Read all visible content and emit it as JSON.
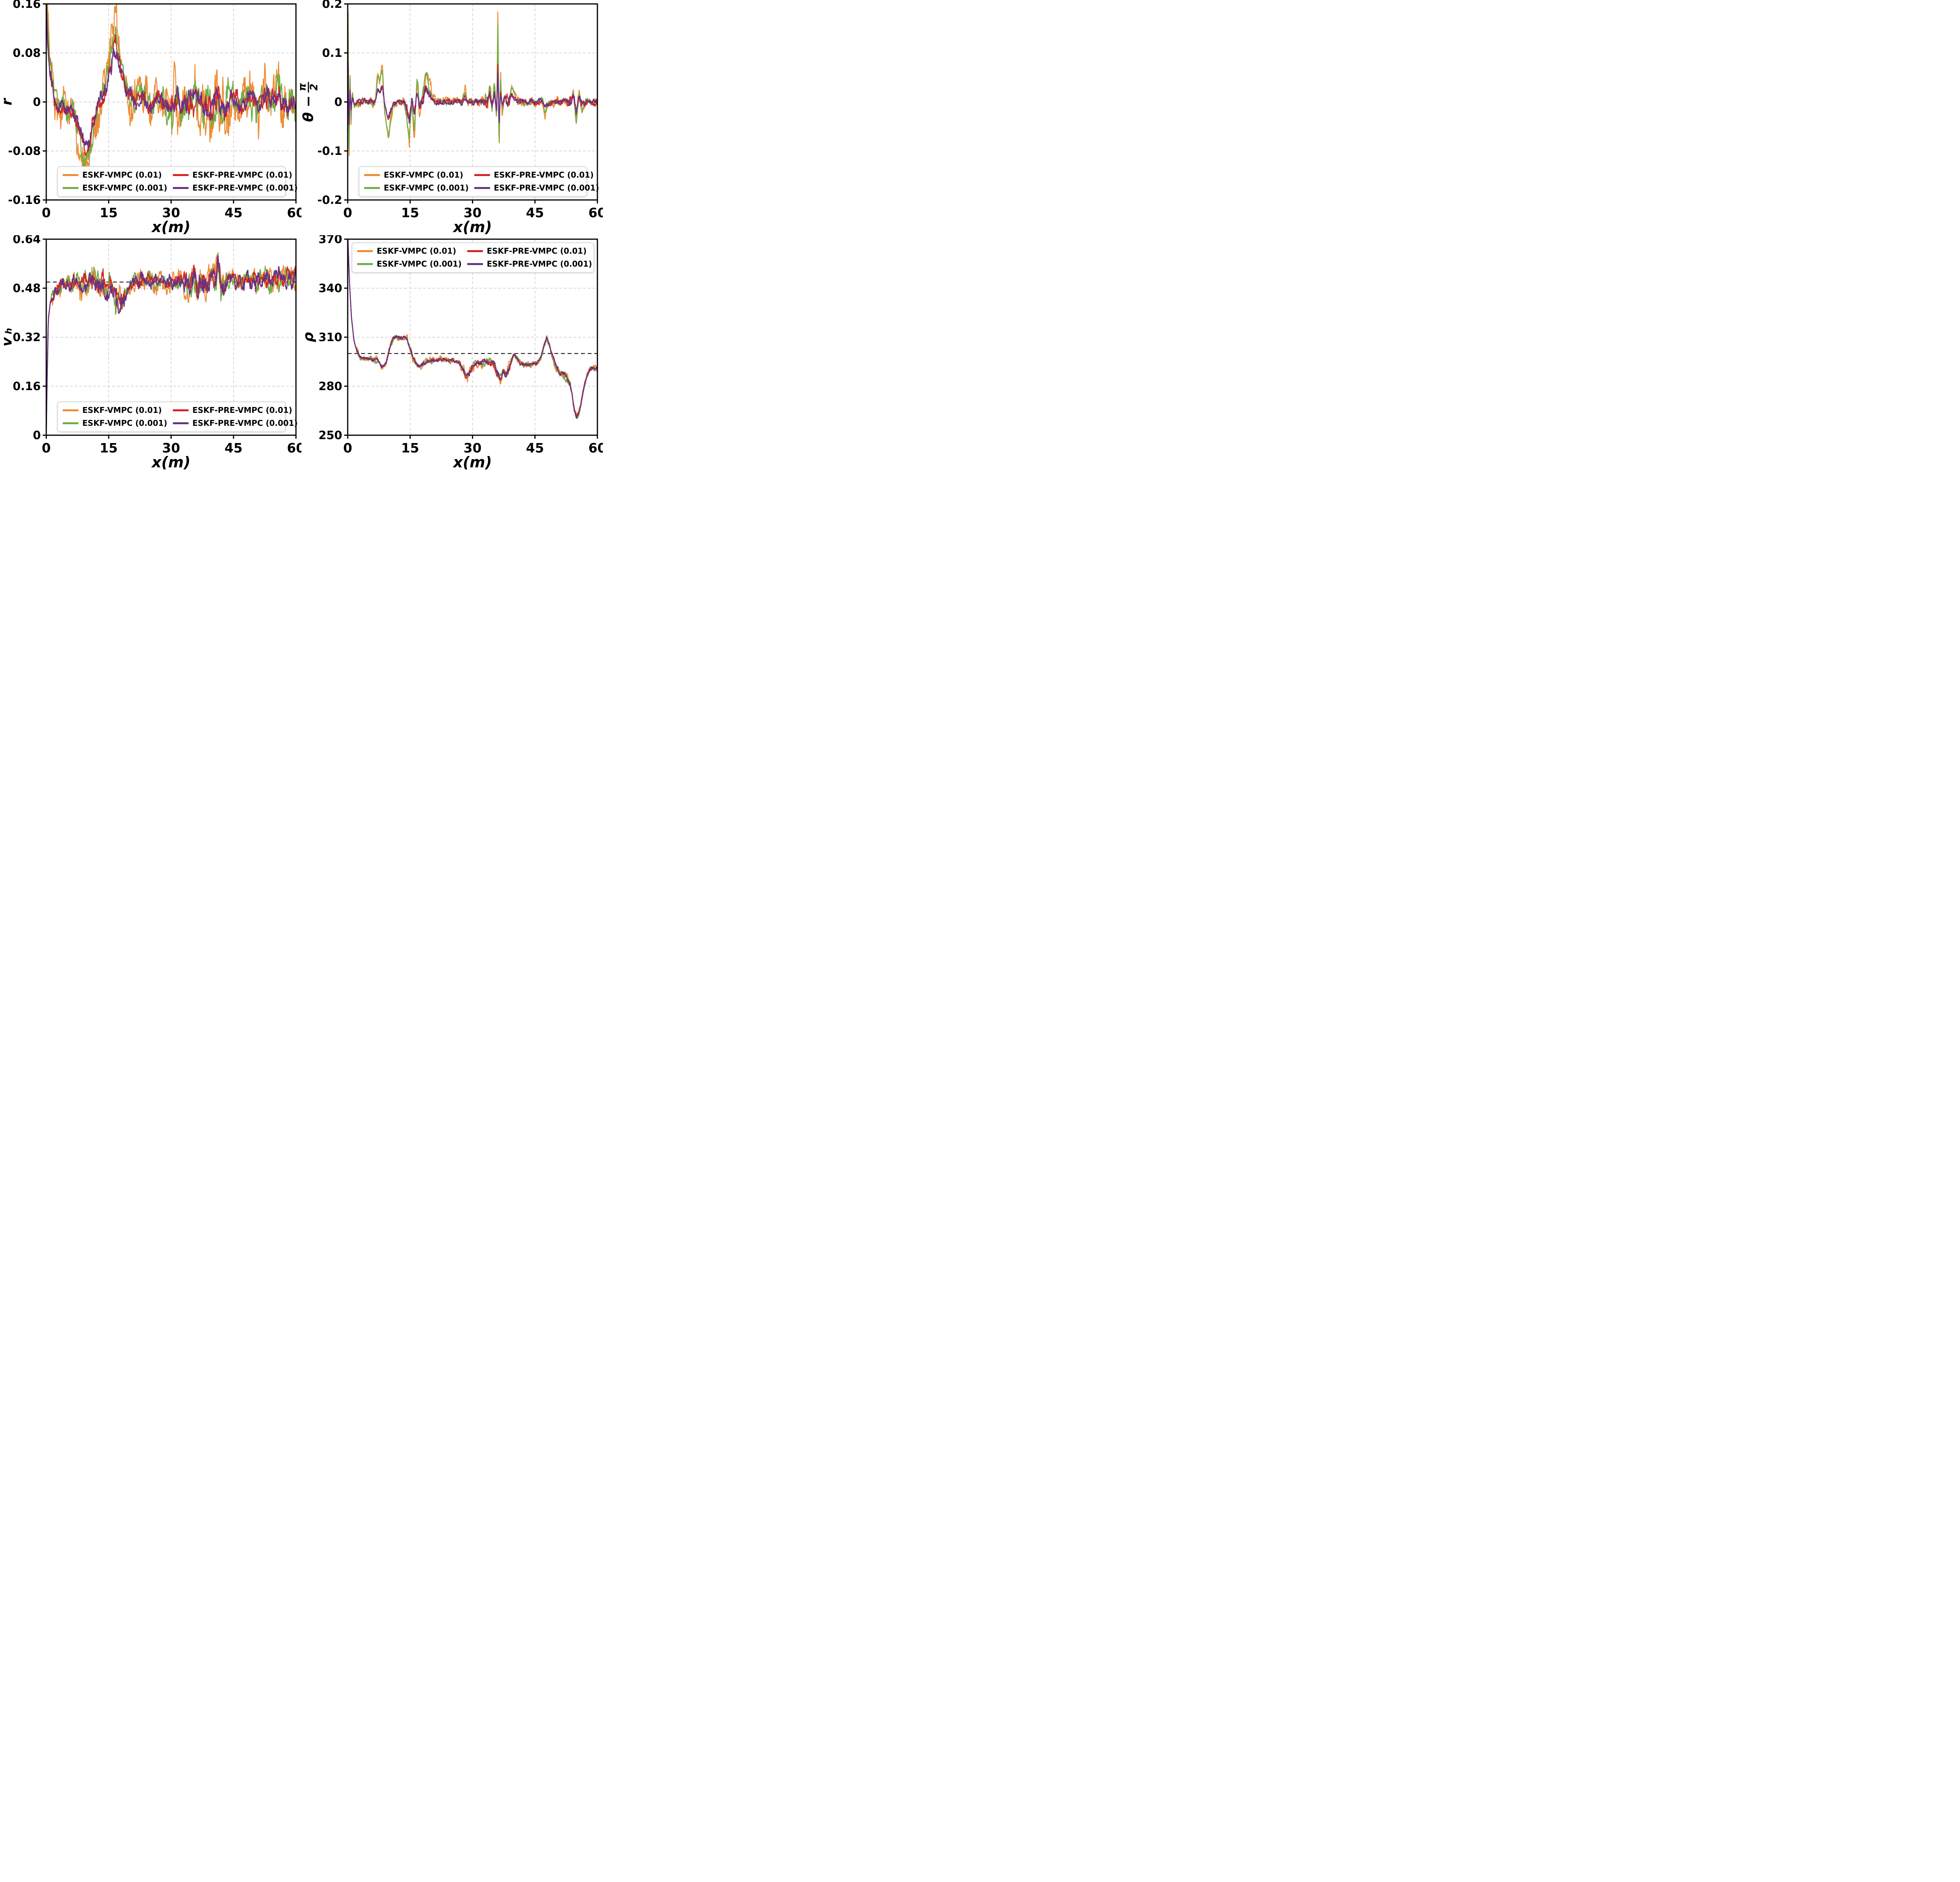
{
  "figure": {
    "background": "#ffffff"
  },
  "legend": {
    "columns": 2,
    "border_color": "#dcdcdc",
    "background": "#ffffff",
    "entries": [
      {
        "label": "ESKF-VMPC (0.01)",
        "color": "#EE8B33"
      },
      {
        "label": "ESKF-VMPC (0.001)",
        "color": "#6FAE44"
      },
      {
        "label": "ESKF-PRE-VMPC (0.01)",
        "color": "#D62222"
      },
      {
        "label": "ESKF-PRE-VMPC (0.001)",
        "color": "#6A3185"
      }
    ]
  },
  "chart_data": [
    {
      "id": "r",
      "type": "line",
      "title": "",
      "xlabel": "x(m)",
      "ylabel": {
        "kind": "plain",
        "text": "r"
      },
      "xlim": [
        0,
        60
      ],
      "ylim": [
        -0.16,
        0.16
      ],
      "xticks": [
        0,
        15,
        30,
        45,
        60
      ],
      "xtick_labels": [
        "0",
        "15",
        "30",
        "45",
        "60"
      ],
      "yticks": [
        -0.16,
        -0.08,
        0,
        0.08,
        0.16
      ],
      "ytick_labels": [
        "-0.16",
        "-0.08",
        "0",
        "0.08",
        "0.16"
      ],
      "grid": true,
      "ref_line": null,
      "legend_position": "bottom",
      "trend": [
        [
          0,
          0.22
        ],
        [
          0.3,
          0.13
        ],
        [
          0.8,
          0.06
        ],
        [
          1.5,
          0.02
        ],
        [
          2.5,
          0
        ],
        [
          4,
          -0.005
        ],
        [
          5.5,
          -0.012
        ],
        [
          7,
          -0.03
        ],
        [
          8,
          -0.055
        ],
        [
          9,
          -0.08
        ],
        [
          9.7,
          -0.1
        ],
        [
          10.3,
          -0.085
        ],
        [
          11,
          -0.05
        ],
        [
          12,
          -0.015
        ],
        [
          13,
          0.005
        ],
        [
          14,
          0.015
        ],
        [
          15,
          0.05
        ],
        [
          15.8,
          0.09
        ],
        [
          16.5,
          0.11
        ],
        [
          17.2,
          0.095
        ],
        [
          18,
          0.06
        ],
        [
          19,
          0.03
        ],
        [
          20,
          0.012
        ],
        [
          21.5,
          0
        ],
        [
          23,
          0.01
        ],
        [
          25,
          -0.006
        ],
        [
          27,
          0.006
        ],
        [
          29,
          -0.01
        ],
        [
          31,
          0.006
        ],
        [
          33,
          -0.012
        ],
        [
          34,
          0.006
        ],
        [
          35,
          -0.006
        ],
        [
          37,
          0.012
        ],
        [
          38.5,
          -0.012
        ],
        [
          40,
          -0.022
        ],
        [
          41,
          0.006
        ],
        [
          43,
          -0.006
        ],
        [
          45,
          0.012
        ],
        [
          47,
          -0.006
        ],
        [
          49,
          0.006
        ],
        [
          51,
          -0.012
        ],
        [
          52.5,
          0.012
        ],
        [
          54,
          0
        ],
        [
          56,
          0.012
        ],
        [
          57.5,
          -0.015
        ],
        [
          59,
          0.006
        ],
        [
          60,
          -0.012
        ]
      ],
      "noise_regions": [
        [
          0,
          1,
          0.5
        ],
        [
          30,
          44,
          1.5
        ],
        [
          48,
          60,
          1.2
        ]
      ],
      "series": [
        {
          "name": "ESKF-VMPC (0.01)",
          "color": "#EE8B33",
          "scale": 1.2,
          "noise_amp": 0.04,
          "width": 2.4,
          "seed": 3
        },
        {
          "name": "ESKF-VMPC (0.001)",
          "color": "#6FAE44",
          "scale": 1.05,
          "noise_amp": 0.024,
          "width": 2.4,
          "seed": 17
        },
        {
          "name": "ESKF-PRE-VMPC (0.01)",
          "color": "#D62222",
          "scale": 0.85,
          "noise_amp": 0.015,
          "width": 2.5,
          "seed": 29
        },
        {
          "name": "ESKF-PRE-VMPC (0.001)",
          "color": "#6A3185",
          "scale": 0.75,
          "noise_amp": 0.014,
          "width": 2.6,
          "seed": 41
        }
      ]
    },
    {
      "id": "theta-error",
      "type": "line",
      "title": "",
      "xlabel": "x(m)",
      "ylabel": {
        "kind": "frac",
        "prefix": "θ −",
        "num": "π",
        "den": "2"
      },
      "xlim": [
        0,
        60
      ],
      "ylim": [
        -0.2,
        0.2
      ],
      "xticks": [
        0,
        15,
        30,
        45,
        60
      ],
      "xtick_labels": [
        "0",
        "15",
        "30",
        "45",
        "60"
      ],
      "yticks": [
        -0.2,
        -0.1,
        0,
        0.1,
        0.2
      ],
      "ytick_labels": [
        "-0.2",
        "-0.1",
        "0",
        "0.1",
        "0.2"
      ],
      "grid": true,
      "ref_line": null,
      "legend_position": "bottom",
      "trend": [
        [
          0,
          0.02
        ],
        [
          0.12,
          0.17
        ],
        [
          0.3,
          -0.13
        ],
        [
          0.55,
          0.06
        ],
        [
          0.8,
          -0.04
        ],
        [
          1.1,
          0.02
        ],
        [
          1.6,
          -0.01
        ],
        [
          2.2,
          0
        ],
        [
          6.6,
          0
        ],
        [
          7.2,
          0.05
        ],
        [
          7.7,
          0.04
        ],
        [
          8.3,
          0.07
        ],
        [
          8.8,
          -0.01
        ],
        [
          9.3,
          -0.04
        ],
        [
          9.8,
          -0.065
        ],
        [
          10.4,
          -0.03
        ],
        [
          11,
          -0.005
        ],
        [
          13.6,
          0
        ],
        [
          14.2,
          -0.03
        ],
        [
          14.8,
          -0.075
        ],
        [
          15.4,
          0.01
        ],
        [
          16,
          -0.05
        ],
        [
          16.7,
          0.04
        ],
        [
          17.3,
          -0.02
        ],
        [
          18.2,
          0.02
        ],
        [
          18.9,
          0.055
        ],
        [
          19.5,
          0.035
        ],
        [
          20.3,
          0.005
        ],
        [
          21.5,
          0
        ],
        [
          27.6,
          0
        ],
        [
          28.2,
          0.02
        ],
        [
          28.9,
          0
        ],
        [
          33.6,
          0
        ],
        [
          34.1,
          0.04
        ],
        [
          34.7,
          -0.015
        ],
        [
          35.3,
          0.035
        ],
        [
          35.8,
          -0.04
        ],
        [
          36.1,
          0.17
        ],
        [
          36.35,
          -0.115
        ],
        [
          36.7,
          0.05
        ],
        [
          37.1,
          -0.02
        ],
        [
          37.8,
          0.015
        ],
        [
          38.6,
          0
        ],
        [
          39.4,
          0.03
        ],
        [
          40,
          0.015
        ],
        [
          40.8,
          0
        ],
        [
          46.8,
          0
        ],
        [
          47.4,
          -0.025
        ],
        [
          48.1,
          -0.01
        ],
        [
          48.8,
          0
        ],
        [
          53.6,
          0
        ],
        [
          54.2,
          0.025
        ],
        [
          54.9,
          -0.035
        ],
        [
          55.6,
          0.02
        ],
        [
          56.3,
          -0.01
        ],
        [
          57,
          0
        ],
        [
          60,
          0
        ]
      ],
      "noise_regions": [
        [
          0,
          2,
          0.5
        ],
        [
          14,
          20,
          1.8
        ],
        [
          33,
          39,
          1.8
        ],
        [
          53,
          57,
          1.5
        ]
      ],
      "series": [
        {
          "name": "ESKF-VMPC (0.01)",
          "color": "#EE8B33",
          "scale": 1.15,
          "noise_amp": 0.01,
          "width": 2.4,
          "seed": 7
        },
        {
          "name": "ESKF-VMPC (0.001)",
          "color": "#6FAE44",
          "scale": 1.0,
          "noise_amp": 0.008,
          "width": 2.4,
          "seed": 13
        },
        {
          "name": "ESKF-PRE-VMPC (0.01)",
          "color": "#D62222",
          "scale": 0.5,
          "noise_amp": 0.006,
          "width": 2.5,
          "seed": 23
        },
        {
          "name": "ESKF-PRE-VMPC (0.001)",
          "color": "#6A3185",
          "scale": 0.45,
          "noise_amp": 0.006,
          "width": 2.6,
          "seed": 31
        }
      ]
    },
    {
      "id": "vh",
      "type": "line",
      "title": "",
      "xlabel": "x(m)",
      "ylabel": {
        "kind": "sub",
        "main": "v",
        "sub": "h"
      },
      "xlim": [
        0,
        60
      ],
      "ylim": [
        0,
        0.64
      ],
      "xticks": [
        0,
        15,
        30,
        45,
        60
      ],
      "xtick_labels": [
        "0",
        "15",
        "30",
        "45",
        "60"
      ],
      "yticks": [
        0,
        0.16,
        0.32,
        0.48,
        0.64
      ],
      "ytick_labels": [
        "0",
        "0.16",
        "0.32",
        "0.48",
        "0.64"
      ],
      "grid": true,
      "ref_line": {
        "y": 0.5,
        "style": "dashed",
        "color": "#000000"
      },
      "legend_position": "bottom",
      "trend": [
        [
          0,
          0
        ],
        [
          0.2,
          0.18
        ],
        [
          0.5,
          0.38
        ],
        [
          1,
          0.435
        ],
        [
          2,
          0.465
        ],
        [
          3,
          0.48
        ],
        [
          4.5,
          0.495
        ],
        [
          6,
          0.5
        ],
        [
          7.5,
          0.505
        ],
        [
          8.5,
          0.49
        ],
        [
          9.5,
          0.515
        ],
        [
          10.5,
          0.49
        ],
        [
          11.5,
          0.51
        ],
        [
          12.5,
          0.49
        ],
        [
          13.5,
          0.515
        ],
        [
          14.5,
          0.47
        ],
        [
          15.5,
          0.5
        ],
        [
          16.5,
          0.45
        ],
        [
          17.5,
          0.44
        ],
        [
          18.5,
          0.44
        ],
        [
          19.5,
          0.46
        ],
        [
          20.5,
          0.49
        ],
        [
          21.5,
          0.505
        ],
        [
          23,
          0.5
        ],
        [
          24.5,
          0.515
        ],
        [
          26,
          0.5
        ],
        [
          27.5,
          0.51
        ],
        [
          29,
          0.5
        ],
        [
          30.5,
          0.505
        ],
        [
          32,
          0.5
        ],
        [
          33.5,
          0.51
        ],
        [
          34.5,
          0.48
        ],
        [
          35.5,
          0.52
        ],
        [
          36.5,
          0.46
        ],
        [
          37.5,
          0.52
        ],
        [
          38.5,
          0.48
        ],
        [
          39.5,
          0.53
        ],
        [
          40.5,
          0.5
        ],
        [
          41.2,
          0.56
        ],
        [
          42,
          0.47
        ],
        [
          43,
          0.5
        ],
        [
          44.5,
          0.505
        ],
        [
          46,
          0.51
        ],
        [
          47.5,
          0.5
        ],
        [
          49,
          0.515
        ],
        [
          50.5,
          0.5
        ],
        [
          52,
          0.52
        ],
        [
          53.5,
          0.5
        ],
        [
          55,
          0.515
        ],
        [
          56.5,
          0.505
        ],
        [
          58,
          0.52
        ],
        [
          59,
          0.51
        ],
        [
          60,
          0.53
        ]
      ],
      "noise_regions": [
        [
          0,
          1.2,
          0.2
        ],
        [
          8,
          19,
          1.5
        ],
        [
          33,
          43,
          1.6
        ],
        [
          49,
          60,
          1.3
        ]
      ],
      "series": [
        {
          "name": "ESKF-VMPC (0.01)",
          "color": "#EE8B33",
          "scale": 1,
          "noise_amp": 0.036,
          "width": 2.4,
          "seed": 5
        },
        {
          "name": "ESKF-VMPC (0.001)",
          "color": "#6FAE44",
          "scale": 1,
          "noise_amp": 0.028,
          "width": 2.4,
          "seed": 11
        },
        {
          "name": "ESKF-PRE-VMPC (0.01)",
          "color": "#D62222",
          "scale": 1,
          "noise_amp": 0.02,
          "width": 2.5,
          "seed": 19
        },
        {
          "name": "ESKF-PRE-VMPC (0.001)",
          "color": "#6A3185",
          "scale": 1,
          "noise_amp": 0.026,
          "width": 2.6,
          "seed": 27
        }
      ]
    },
    {
      "id": "rho",
      "type": "line",
      "title": "",
      "xlabel": "x(m)",
      "ylabel": {
        "kind": "plain",
        "text": "ρ"
      },
      "xlim": [
        0,
        60
      ],
      "ylim": [
        250,
        370
      ],
      "xticks": [
        0,
        15,
        30,
        45,
        60
      ],
      "xtick_labels": [
        "0",
        "15",
        "30",
        "45",
        "60"
      ],
      "yticks": [
        250,
        280,
        310,
        340,
        370
      ],
      "ytick_labels": [
        "250",
        "280",
        "310",
        "340",
        "370"
      ],
      "grid": true,
      "ref_line": {
        "y": 300,
        "style": "dashed",
        "color": "#000000"
      },
      "legend_position": "top",
      "trend": [
        [
          0,
          374
        ],
        [
          0.4,
          345
        ],
        [
          0.9,
          322
        ],
        [
          1.5,
          308
        ],
        [
          2.2,
          301
        ],
        [
          3,
          298
        ],
        [
          4,
          297
        ],
        [
          5.5,
          297
        ],
        [
          7,
          296
        ],
        [
          7.8,
          293
        ],
        [
          8.5,
          291.5
        ],
        [
          9.2,
          294
        ],
        [
          9.8,
          300
        ],
        [
          10.4,
          306
        ],
        [
          11,
          309.5
        ],
        [
          12,
          310
        ],
        [
          13.5,
          310
        ],
        [
          14.3,
          309
        ],
        [
          15,
          303
        ],
        [
          15.7,
          297
        ],
        [
          16.4,
          294
        ],
        [
          17.2,
          292
        ],
        [
          18,
          293.5
        ],
        [
          19,
          295
        ],
        [
          20.5,
          295.5
        ],
        [
          22,
          296
        ],
        [
          24,
          296
        ],
        [
          26,
          295.5
        ],
        [
          27,
          293.5
        ],
        [
          27.8,
          289
        ],
        [
          28.5,
          286
        ],
        [
          29.2,
          288
        ],
        [
          30,
          292
        ],
        [
          30.8,
          294
        ],
        [
          31.8,
          294.5
        ],
        [
          32.8,
          295.5
        ],
        [
          33.8,
          294
        ],
        [
          34.8,
          295
        ],
        [
          35.6,
          291
        ],
        [
          36.2,
          287
        ],
        [
          36.8,
          284.5
        ],
        [
          37.4,
          289
        ],
        [
          38,
          286.5
        ],
        [
          38.7,
          291
        ],
        [
          39.4,
          296
        ],
        [
          40,
          299.5
        ],
        [
          40.7,
          297.5
        ],
        [
          41.4,
          294
        ],
        [
          42.5,
          293
        ],
        [
          44,
          293
        ],
        [
          45.5,
          294
        ],
        [
          46.4,
          297
        ],
        [
          47.2,
          305
        ],
        [
          47.8,
          309.5
        ],
        [
          48.5,
          305
        ],
        [
          49.3,
          297
        ],
        [
          50.2,
          291
        ],
        [
          51,
          288
        ],
        [
          52,
          287.5
        ],
        [
          53,
          283
        ],
        [
          53.8,
          276
        ],
        [
          54.4,
          266
        ],
        [
          55,
          261
        ],
        [
          55.6,
          264
        ],
        [
          56.2,
          272
        ],
        [
          56.9,
          281
        ],
        [
          57.6,
          287
        ],
        [
          58.4,
          290.5
        ],
        [
          59.2,
          291
        ],
        [
          60,
          291.5
        ]
      ],
      "noise_regions": [
        [
          0,
          2,
          0.3
        ],
        [
          27,
          35,
          1.6
        ],
        [
          35,
          39,
          2.0
        ],
        [
          49,
          54,
          1.6
        ]
      ],
      "series": [
        {
          "name": "ESKF-VMPC (0.01)",
          "color": "#EE8B33",
          "scale": 1,
          "noise_amp": 2.2,
          "width": 2.4,
          "seed": 9
        },
        {
          "name": "ESKF-VMPC (0.001)",
          "color": "#6FAE44",
          "scale": 1,
          "noise_amp": 1.8,
          "width": 2.4,
          "seed": 15
        },
        {
          "name": "ESKF-PRE-VMPC (0.01)",
          "color": "#D62222",
          "scale": 1,
          "noise_amp": 1.2,
          "width": 2.5,
          "seed": 21
        },
        {
          "name": "ESKF-PRE-VMPC (0.001)",
          "color": "#6A3185",
          "scale": 1,
          "noise_amp": 1.2,
          "width": 2.6,
          "seed": 33
        }
      ]
    }
  ]
}
